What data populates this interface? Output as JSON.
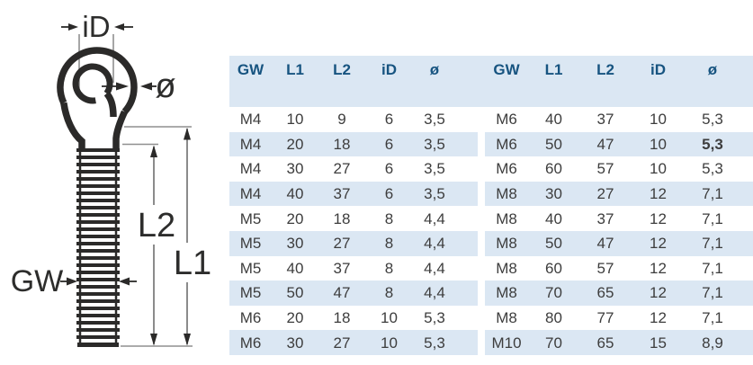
{
  "diagram": {
    "labels": {
      "inner_diameter": "iD",
      "wire_diameter": "ø",
      "thread_length": "L2",
      "total_length": "L1",
      "thread_size": "GW"
    }
  },
  "table": {
    "columns": [
      "GW",
      "L1",
      "L2",
      "iD",
      "ø"
    ],
    "left_rows": [
      [
        "M4",
        "10",
        "9",
        "6",
        "3,5"
      ],
      [
        "M4",
        "20",
        "18",
        "6",
        "3,5"
      ],
      [
        "M4",
        "30",
        "27",
        "6",
        "3,5"
      ],
      [
        "M4",
        "40",
        "37",
        "6",
        "3,5"
      ],
      [
        "M5",
        "20",
        "18",
        "8",
        "4,4"
      ],
      [
        "M5",
        "30",
        "27",
        "8",
        "4,4"
      ],
      [
        "M5",
        "40",
        "37",
        "8",
        "4,4"
      ],
      [
        "M5",
        "50",
        "47",
        "8",
        "4,4"
      ],
      [
        "M6",
        "20",
        "18",
        "10",
        "5,3"
      ],
      [
        "M6",
        "30",
        "27",
        "10",
        "5,3"
      ]
    ],
    "right_rows": [
      [
        "M6",
        "40",
        "37",
        "10",
        "5,3"
      ],
      [
        "M6",
        "50",
        "47",
        "10",
        "5,3"
      ],
      [
        "M6",
        "60",
        "57",
        "10",
        "5,3"
      ],
      [
        "M8",
        "30",
        "27",
        "12",
        "7,1"
      ],
      [
        "M8",
        "40",
        "37",
        "12",
        "7,1"
      ],
      [
        "M8",
        "50",
        "47",
        "12",
        "7,1"
      ],
      [
        "M8",
        "60",
        "57",
        "12",
        "7,1"
      ],
      [
        "M8",
        "70",
        "65",
        "12",
        "7,1"
      ],
      [
        "M8",
        "80",
        "77",
        "12",
        "7,1"
      ],
      [
        "M10",
        "70",
        "65",
        "15",
        "8,9"
      ]
    ],
    "bold_cell": {
      "half": "right",
      "row": 1,
      "col": 4
    }
  },
  "colors": {
    "band_blue": "#dbe7f3",
    "header_text": "#175480",
    "body_text": "#3d3d3d",
    "drawing_black": "#2b2a29",
    "dim_line_grey": "#8f8f8f"
  }
}
